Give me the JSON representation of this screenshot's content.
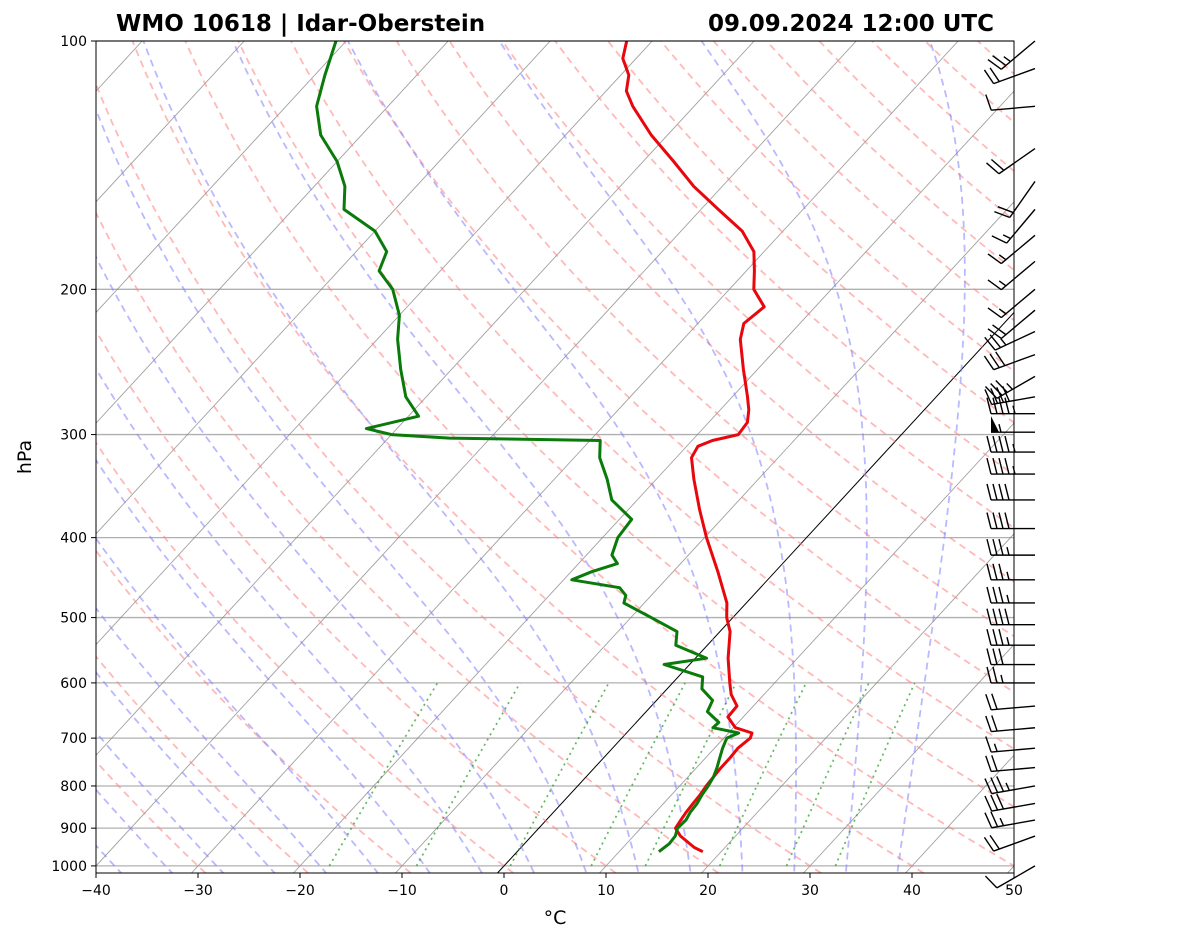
{
  "title_left": "WMO 10618 | Idar-Oberstein",
  "title_right": "09.09.2024 12:00 UTC",
  "chart_data": {
    "type": "line",
    "subtype": "skew-T log-p sounding",
    "xlabel": "°C",
    "ylabel": "hPa",
    "xlim": [
      -40,
      50
    ],
    "ylim": [
      1020,
      100
    ],
    "y_scale": "log",
    "x_ticks": [
      -40,
      -30,
      -20,
      -10,
      0,
      10,
      20,
      30,
      40,
      50
    ],
    "y_ticks": [
      100,
      200,
      300,
      400,
      500,
      600,
      700,
      800,
      900,
      1000
    ],
    "grid": true,
    "colors": {
      "temperature": "#e8070c",
      "dewpoint": "#0a7a0a",
      "isotherms": "#808080",
      "dry_adiabats": "#ff7f7f",
      "moist_adiabats": "#7f7fff",
      "mixing_ratio": "#2ca02c",
      "zero_isotherm": "#000000"
    },
    "series": [
      {
        "key": "temperature",
        "points": [
          [
            961,
            18.2
          ],
          [
            950,
            17.0
          ],
          [
            920,
            14.6
          ],
          [
            900,
            13.4
          ],
          [
            880,
            13.2
          ],
          [
            860,
            13.0
          ],
          [
            840,
            12.9
          ],
          [
            820,
            12.8
          ],
          [
            800,
            12.6
          ],
          [
            780,
            12.5
          ],
          [
            760,
            12.4
          ],
          [
            740,
            12.4
          ],
          [
            720,
            12.3
          ],
          [
            700,
            12.6
          ],
          [
            690,
            12.3
          ],
          [
            680,
            10.2
          ],
          [
            660,
            8.5
          ],
          [
            640,
            8.4
          ],
          [
            620,
            6.8
          ],
          [
            600,
            5.6
          ],
          [
            560,
            3.2
          ],
          [
            520,
            1.0
          ],
          [
            500,
            -0.6
          ],
          [
            480,
            -1.9
          ],
          [
            440,
            -5.6
          ],
          [
            400,
            -9.8
          ],
          [
            370,
            -13.0
          ],
          [
            340,
            -16.3
          ],
          [
            320,
            -18.5
          ],
          [
            310,
            -18.9
          ],
          [
            305,
            -18.0
          ],
          [
            300,
            -16.0
          ],
          [
            290,
            -16.2
          ],
          [
            280,
            -17.2
          ],
          [
            270,
            -18.5
          ],
          [
            250,
            -21.4
          ],
          [
            230,
            -24.4
          ],
          [
            220,
            -25.5
          ],
          [
            210,
            -25.0
          ],
          [
            200,
            -27.6
          ],
          [
            190,
            -29.2
          ],
          [
            180,
            -31.0
          ],
          [
            170,
            -34.0
          ],
          [
            160,
            -38.3
          ],
          [
            150,
            -42.8
          ],
          [
            140,
            -47.0
          ],
          [
            130,
            -51.6
          ],
          [
            120,
            -56.0
          ],
          [
            115,
            -58.0
          ],
          [
            110,
            -59.2
          ],
          [
            105,
            -61.3
          ],
          [
            100,
            -62.5
          ]
        ]
      },
      {
        "key": "dewpoint",
        "points": [
          [
            961,
            13.9
          ],
          [
            940,
            14.2
          ],
          [
            920,
            14.1
          ],
          [
            900,
            13.6
          ],
          [
            880,
            13.7
          ],
          [
            860,
            13.4
          ],
          [
            840,
            13.3
          ],
          [
            820,
            13.0
          ],
          [
            800,
            12.8
          ],
          [
            780,
            12.5
          ],
          [
            760,
            12.0
          ],
          [
            740,
            11.4
          ],
          [
            720,
            10.8
          ],
          [
            700,
            10.3
          ],
          [
            690,
            11.0
          ],
          [
            680,
            8.0
          ],
          [
            670,
            8.1
          ],
          [
            650,
            6.0
          ],
          [
            630,
            5.5
          ],
          [
            610,
            3.4
          ],
          [
            590,
            2.4
          ],
          [
            580,
            0.0
          ],
          [
            570,
            -2.5
          ],
          [
            560,
            1.1
          ],
          [
            540,
            -3.1
          ],
          [
            520,
            -4.2
          ],
          [
            500,
            -8.0
          ],
          [
            480,
            -12.0
          ],
          [
            470,
            -12.5
          ],
          [
            460,
            -13.8
          ],
          [
            450,
            -19.2
          ],
          [
            440,
            -18.0
          ],
          [
            430,
            -16.2
          ],
          [
            420,
            -17.5
          ],
          [
            400,
            -18.5
          ],
          [
            380,
            -18.8
          ],
          [
            360,
            -22.5
          ],
          [
            340,
            -24.8
          ],
          [
            320,
            -27.5
          ],
          [
            305,
            -29.0
          ],
          [
            303,
            -44.0
          ],
          [
            300,
            -50.0
          ],
          [
            295,
            -53.0
          ],
          [
            285,
            -49.0
          ],
          [
            270,
            -52.0
          ],
          [
            250,
            -55.0
          ],
          [
            230,
            -58.0
          ],
          [
            215,
            -60.0
          ],
          [
            200,
            -63.0
          ],
          [
            190,
            -66.0
          ],
          [
            180,
            -67.0
          ],
          [
            170,
            -70.0
          ],
          [
            160,
            -75.0
          ],
          [
            150,
            -77.0
          ],
          [
            140,
            -80.0
          ],
          [
            130,
            -84.0
          ],
          [
            120,
            -87.0
          ],
          [
            110,
            -89.0
          ],
          [
            100,
            -91.0
          ]
        ]
      }
    ],
    "wind_barbs": [
      {
        "p": 1000,
        "dir": 240,
        "kt": 10
      },
      {
        "p": 920,
        "dir": 250,
        "kt": 20
      },
      {
        "p": 880,
        "dir": 260,
        "kt": 25
      },
      {
        "p": 840,
        "dir": 260,
        "kt": 30
      },
      {
        "p": 800,
        "dir": 260,
        "kt": 35
      },
      {
        "p": 760,
        "dir": 265,
        "kt": 20
      },
      {
        "p": 720,
        "dir": 265,
        "kt": 15
      },
      {
        "p": 680,
        "dir": 265,
        "kt": 20
      },
      {
        "p": 640,
        "dir": 265,
        "kt": 20
      },
      {
        "p": 600,
        "dir": 270,
        "kt": 25
      },
      {
        "p": 570,
        "dir": 270,
        "kt": 30
      },
      {
        "p": 540,
        "dir": 270,
        "kt": 35
      },
      {
        "p": 510,
        "dir": 270,
        "kt": 40
      },
      {
        "p": 480,
        "dir": 270,
        "kt": 35
      },
      {
        "p": 450,
        "dir": 270,
        "kt": 35
      },
      {
        "p": 420,
        "dir": 270,
        "kt": 35
      },
      {
        "p": 390,
        "dir": 270,
        "kt": 40
      },
      {
        "p": 360,
        "dir": 270,
        "kt": 40
      },
      {
        "p": 335,
        "dir": 270,
        "kt": 45
      },
      {
        "p": 315,
        "dir": 270,
        "kt": 45
      },
      {
        "p": 298,
        "dir": 270,
        "kt": 55
      },
      {
        "p": 283,
        "dir": 270,
        "kt": 45
      },
      {
        "p": 270,
        "dir": 260,
        "kt": 40
      },
      {
        "p": 255,
        "dir": 240,
        "kt": 35
      },
      {
        "p": 240,
        "dir": 250,
        "kt": 30
      },
      {
        "p": 225,
        "dir": 245,
        "kt": 25
      },
      {
        "p": 212,
        "dir": 230,
        "kt": 20
      },
      {
        "p": 200,
        "dir": 230,
        "kt": 15
      },
      {
        "p": 185,
        "dir": 230,
        "kt": 15
      },
      {
        "p": 172,
        "dir": 230,
        "kt": 15
      },
      {
        "p": 160,
        "dir": 220,
        "kt": 15
      },
      {
        "p": 148,
        "dir": 215,
        "kt": 20
      },
      {
        "p": 135,
        "dir": 235,
        "kt": 20
      },
      {
        "p": 120,
        "dir": 265,
        "kt": 10
      },
      {
        "p": 108,
        "dir": 250,
        "kt": 20
      },
      {
        "p": 100,
        "dir": 230,
        "kt": 25
      }
    ]
  }
}
